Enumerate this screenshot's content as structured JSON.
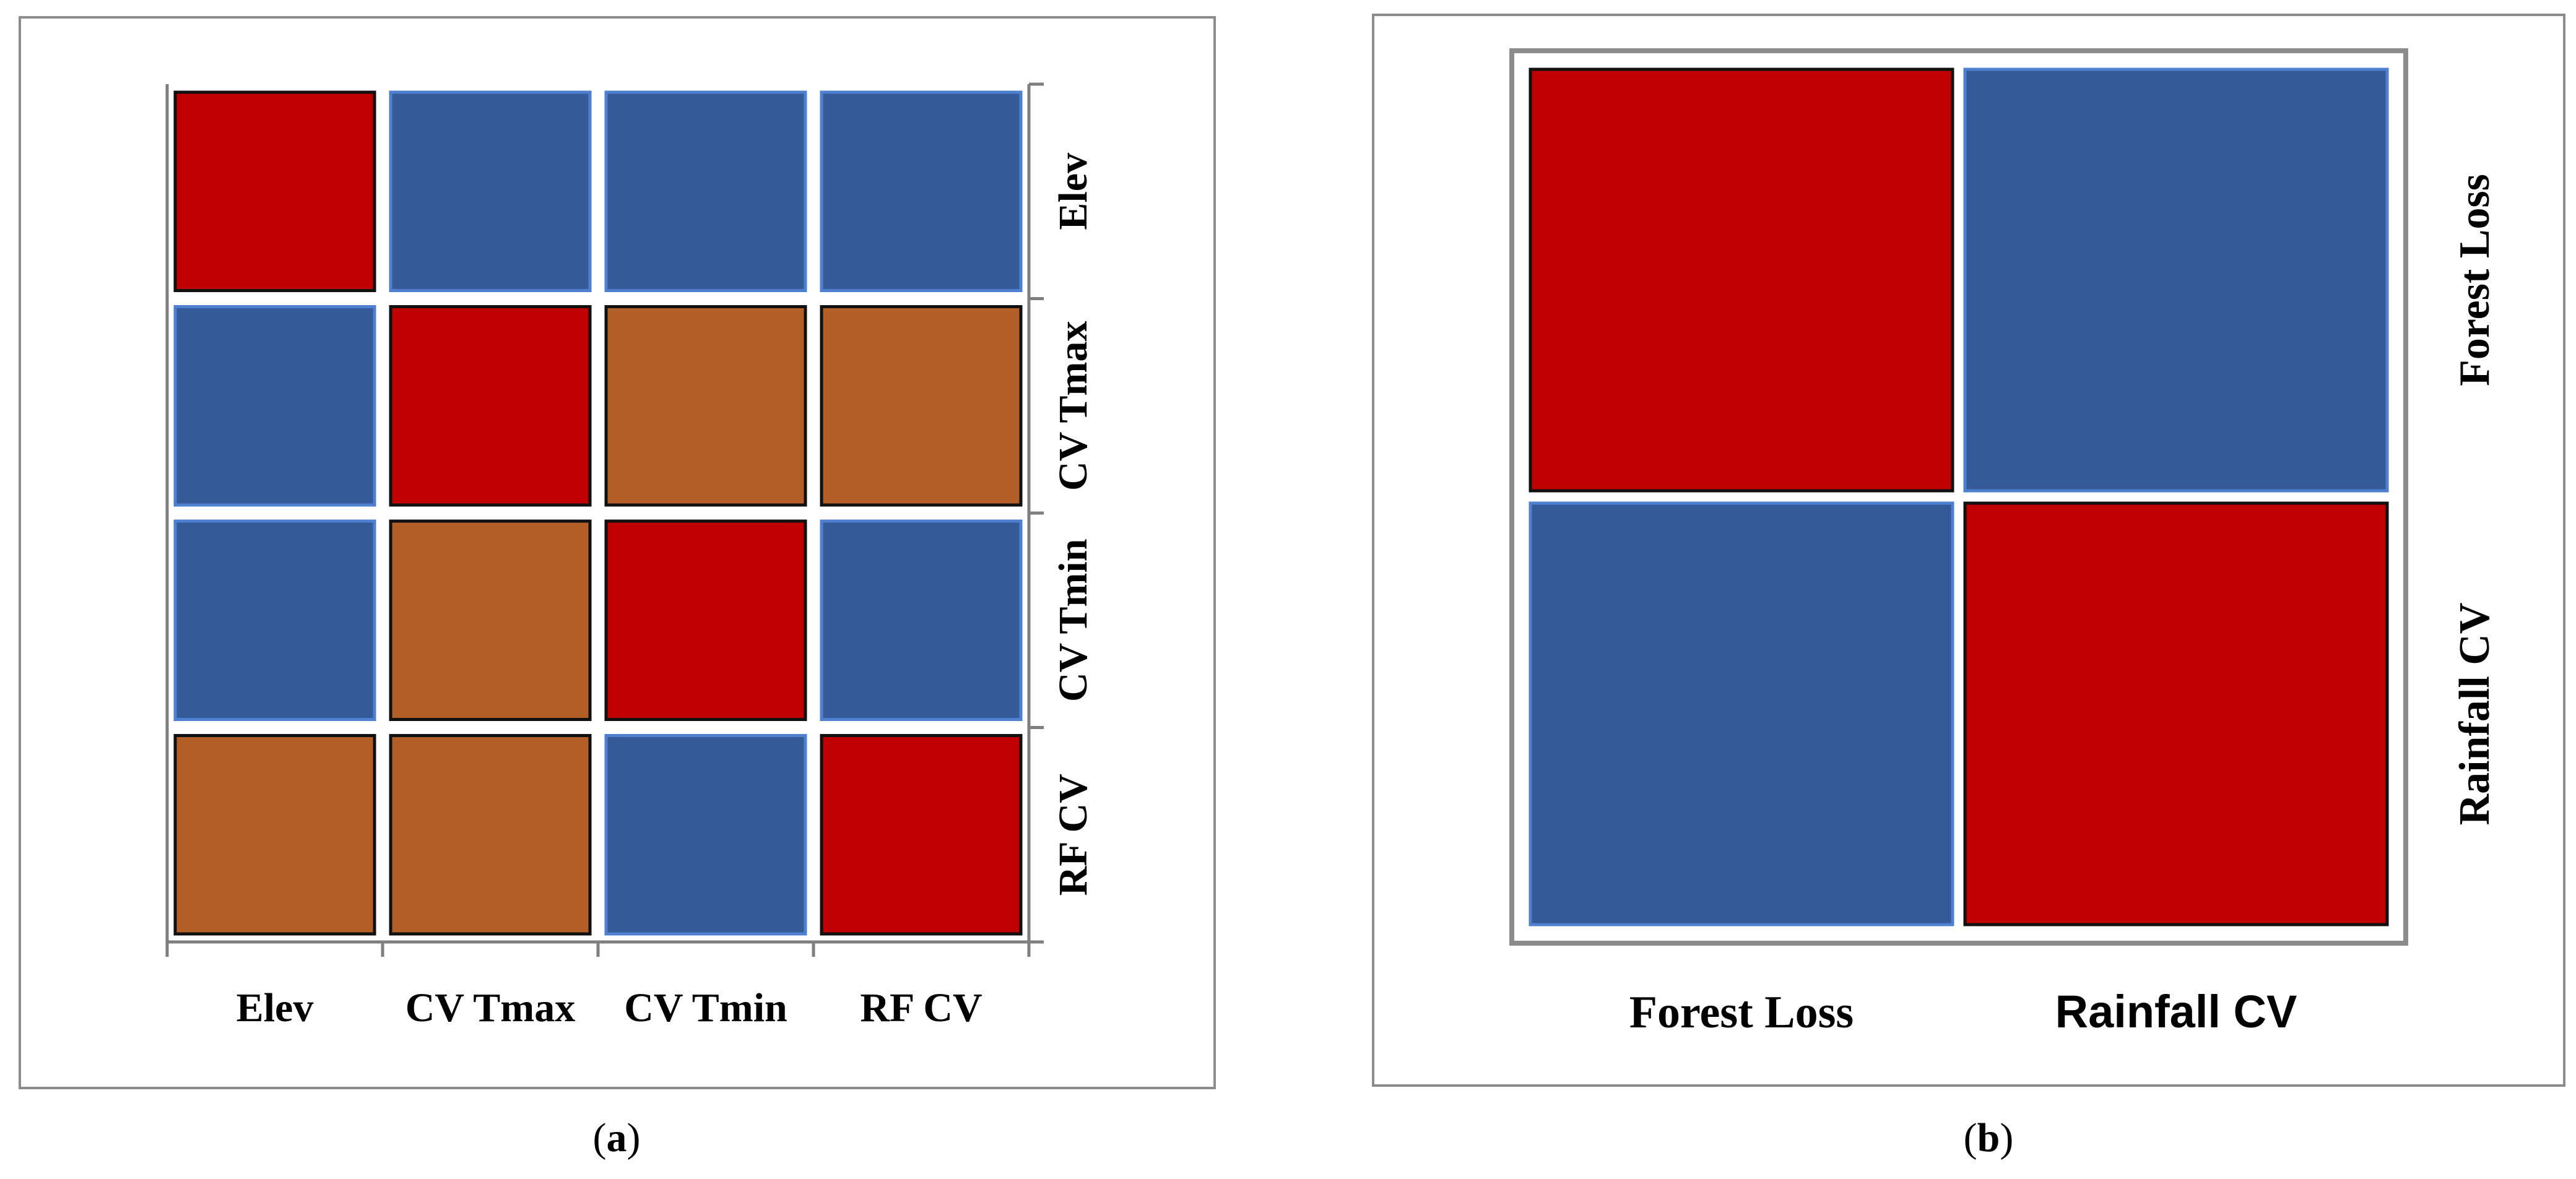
{
  "colors": {
    "red": "#c00000",
    "blue": "#355a98",
    "orange": "#b45f27",
    "frame": "#8c8c8c",
    "axis": "#7f7f7f"
  },
  "chart_data": [
    {
      "type": "heatmap",
      "panel": "(a)",
      "caption_prefix": "(",
      "caption_letter": "a",
      "caption_suffix": ")",
      "categories": [
        "Elev",
        "CV Tmax",
        "CV Tmin",
        "RF CV"
      ],
      "x_tick_labels": [
        "Elev",
        "CV Tmax",
        "CV Tmin",
        "RF CV"
      ],
      "y_tick_labels": [
        "Elev",
        "CV Tmax",
        "CV Tmin",
        "RF CV"
      ],
      "cell_colors": [
        [
          "red",
          "blue",
          "blue",
          "blue"
        ],
        [
          "blue",
          "red",
          "orange",
          "orange"
        ],
        [
          "blue",
          "orange",
          "red",
          "blue"
        ],
        [
          "orange",
          "orange",
          "blue",
          "red"
        ]
      ],
      "grid": false,
      "y_labels_side": "right"
    },
    {
      "type": "heatmap",
      "panel": "(b)",
      "caption_prefix": "(",
      "caption_letter": "b",
      "caption_suffix": ")",
      "categories": [
        "Forest Loss",
        "Rainfall CV"
      ],
      "x_tick_labels": [
        "Forest Loss",
        "Rainfall CV"
      ],
      "y_tick_labels": [
        "Forest Loss",
        "Rainfall  CV"
      ],
      "cell_colors": [
        [
          "red",
          "blue"
        ],
        [
          "blue",
          "red"
        ]
      ],
      "grid": false,
      "y_labels_side": "right"
    }
  ]
}
